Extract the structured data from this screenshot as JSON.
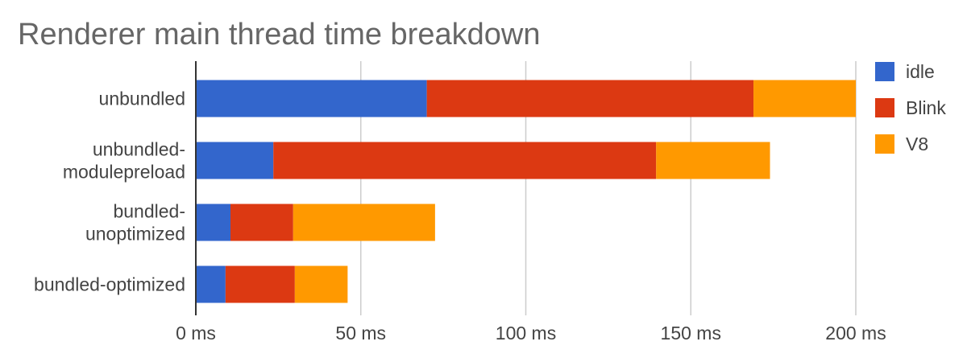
{
  "chart_data": {
    "type": "bar",
    "orientation": "horizontal",
    "stacked": true,
    "title": "Renderer main thread time breakdown",
    "xlabel": "",
    "ylabel": "",
    "categories": [
      [
        "unbundled"
      ],
      [
        "unbundled-",
        "modulepreload"
      ],
      [
        "bundled-",
        "unoptimized"
      ],
      [
        "bundled-optimized"
      ]
    ],
    "series": [
      {
        "name": "idle",
        "color": "#3366cc",
        "values": [
          70,
          23.5,
          10.5,
          9
        ]
      },
      {
        "name": "Blink",
        "color": "#dc3912",
        "values": [
          99,
          116,
          19,
          21
        ]
      },
      {
        "name": "V8",
        "color": "#ff9900",
        "values": [
          31,
          34.5,
          43,
          16
        ]
      }
    ],
    "xlim": [
      0,
      200
    ],
    "xticks": [
      {
        "value": 0,
        "label": "0 ms"
      },
      {
        "value": 50,
        "label": "50 ms"
      },
      {
        "value": 100,
        "label": "100 ms"
      },
      {
        "value": 150,
        "label": "150 ms"
      },
      {
        "value": 200,
        "label": "200 ms"
      }
    ],
    "grid": true,
    "legend_position": "right"
  }
}
